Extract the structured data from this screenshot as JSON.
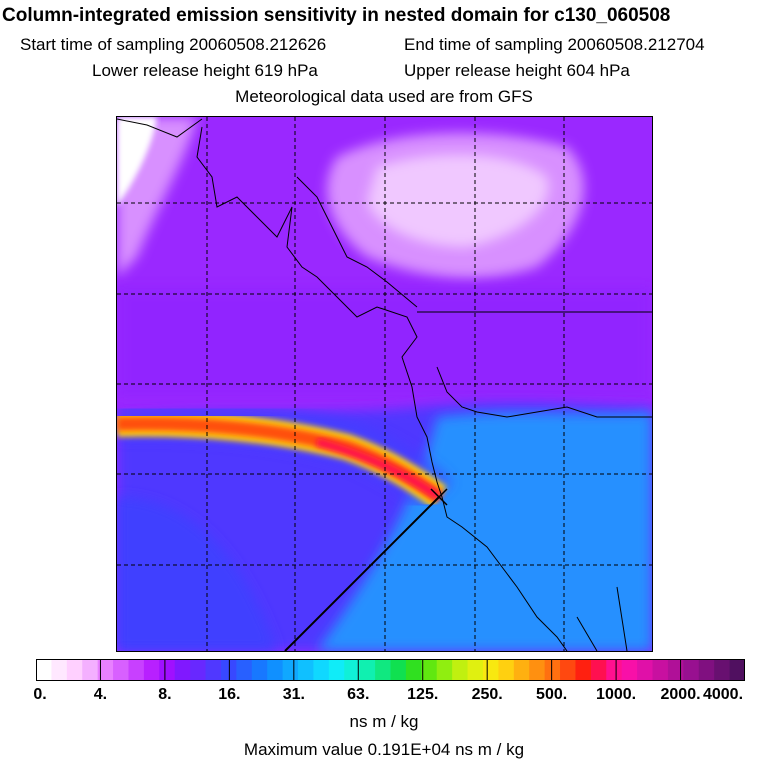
{
  "title": "Column-integrated emission sensitivity in nested domain for c130_060508",
  "header": {
    "start_label": "Start time of sampling 20060508.212626",
    "end_label": "End time of sampling 20060508.212704",
    "lower_label": "Lower release height  619 hPa",
    "upper_label": "Upper release height  604 hPa",
    "met_label": "Meteorological data used are from GFS"
  },
  "colorbar": {
    "tick_labels": [
      "0.",
      "4.",
      "8.",
      "16.",
      "31.",
      "63.",
      "125.",
      "250.",
      "500.",
      "1000.",
      "2000.",
      "4000."
    ],
    "colors": [
      "#ffffff",
      "#ffe8ff",
      "#ffd0ff",
      "#f4b0ff",
      "#e880ff",
      "#d860ff",
      "#c840ff",
      "#b820ff",
      "#a010ff",
      "#8018ff",
      "#6828ff",
      "#5038ff",
      "#3848ff",
      "#2860ff",
      "#1878ff",
      "#1090ff",
      "#10a8ff",
      "#10c0ff",
      "#10d8ff",
      "#10ecf8",
      "#10f0d8",
      "#10f0b0",
      "#10e880",
      "#10e050",
      "#30e020",
      "#60e810",
      "#90ee10",
      "#c0f010",
      "#e0f010",
      "#f8e810",
      "#ffd010",
      "#ffb010",
      "#ff9010",
      "#ff7010",
      "#ff4810",
      "#ff2010",
      "#ff1050",
      "#ff1090",
      "#f810a8",
      "#e010a8",
      "#c810a0",
      "#b01098",
      "#981090",
      "#801080",
      "#681070",
      "#501060"
    ],
    "units": "ns m / kg",
    "max_value": "Maximum value  0.191E+04 ns m / kg"
  },
  "map": {
    "colors": {
      "white": "#ffffff",
      "pale_pink": "#f0c8ff",
      "light_violet": "#d890ff",
      "violet": "#b040ff",
      "purple": "#9020ff",
      "blue_violet": "#6030ff",
      "deep_blue": "#4040ff",
      "blue": "#3060ff",
      "light_blue": "#2890ff",
      "plume_orange": "#ff9010",
      "plume_red": "#ff2010",
      "plume_yellow": "#ffd010"
    }
  }
}
